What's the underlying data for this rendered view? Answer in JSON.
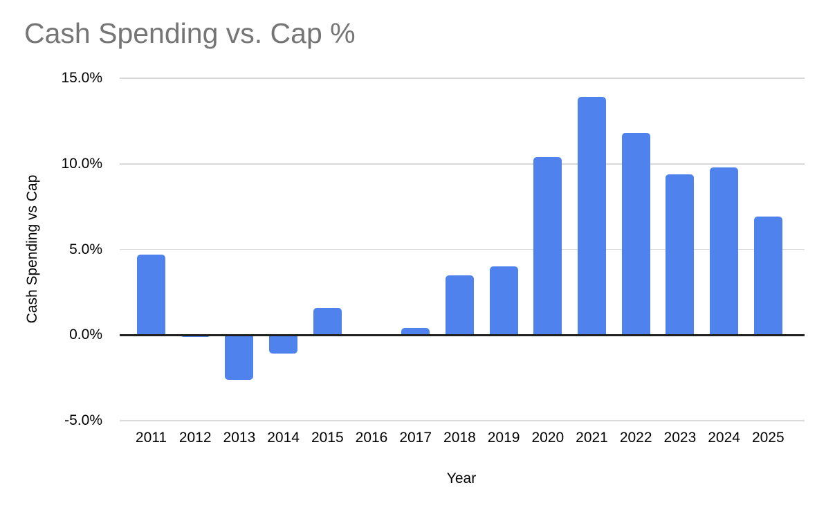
{
  "title": "Cash Spending vs. Cap %",
  "colors": {
    "bar": "#4f82ec",
    "title_text": "#757575",
    "gridline": "#d9d9d9",
    "zero_axis": "#1f1f1f",
    "label_text": "#000000",
    "background": "#ffffff"
  },
  "chart_data": {
    "type": "bar",
    "title": "Cash Spending vs. Cap %",
    "xlabel": "Year",
    "ylabel": "Cash Spending vs Cap",
    "categories": [
      "2011",
      "2012",
      "2013",
      "2014",
      "2015",
      "2016",
      "2017",
      "2018",
      "2019",
      "2020",
      "2021",
      "2022",
      "2023",
      "2024",
      "2025"
    ],
    "values": [
      4.7,
      -0.1,
      -2.6,
      -1.1,
      1.6,
      0.0,
      0.4,
      3.5,
      4.0,
      10.4,
      13.9,
      11.8,
      9.4,
      9.8,
      6.9
    ],
    "value_unit": "%",
    "ylim": [
      -5,
      15
    ],
    "yticks": [
      {
        "value": 15,
        "label": "15.0%"
      },
      {
        "value": 10,
        "label": "10.0%"
      },
      {
        "value": 5,
        "label": "5.0%"
      },
      {
        "value": 0,
        "label": "0.0%"
      },
      {
        "value": -5,
        "label": "-5.0%"
      }
    ],
    "grid": true,
    "legend_position": "none"
  }
}
